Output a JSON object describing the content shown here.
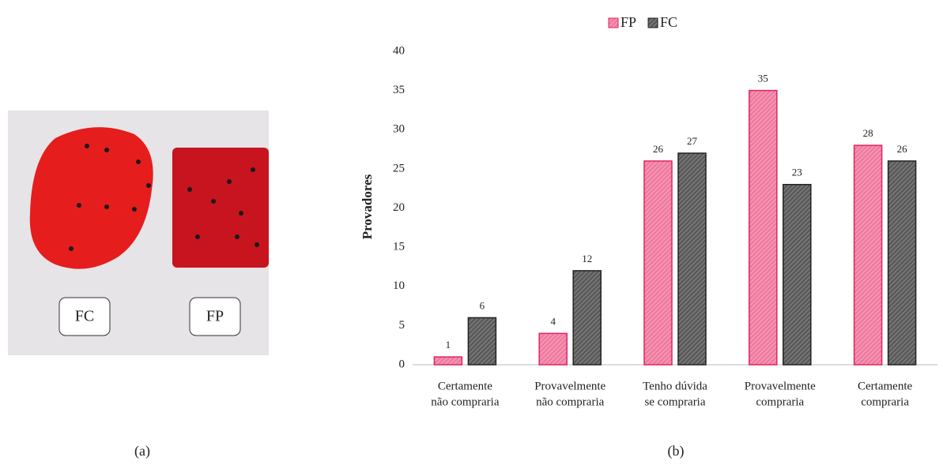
{
  "photo": {
    "labels": [
      "FC",
      "FP"
    ],
    "caption": "(a)"
  },
  "chart_data": {
    "type": "bar",
    "caption": "(b)",
    "y_label": "Provadores",
    "categories": [
      [
        "Certamente",
        "não compraria"
      ],
      [
        "Provavelmente",
        "não compraria"
      ],
      [
        "Tenho dúvida",
        "se compraria"
      ],
      [
        "Provavelmente",
        "compraria"
      ],
      [
        "Certamente",
        "compraria"
      ]
    ],
    "series": [
      {
        "name": "FP",
        "color": "#f07aa0",
        "values": [
          1,
          4,
          26,
          35,
          28
        ]
      },
      {
        "name": "FC",
        "color": "#5a5a5a",
        "values": [
          6,
          12,
          27,
          23,
          26
        ]
      }
    ],
    "ylim": [
      0,
      40
    ],
    "yticks": [
      0,
      5,
      10,
      15,
      20,
      25,
      30,
      35,
      40
    ],
    "grid": false,
    "legend": "top"
  }
}
